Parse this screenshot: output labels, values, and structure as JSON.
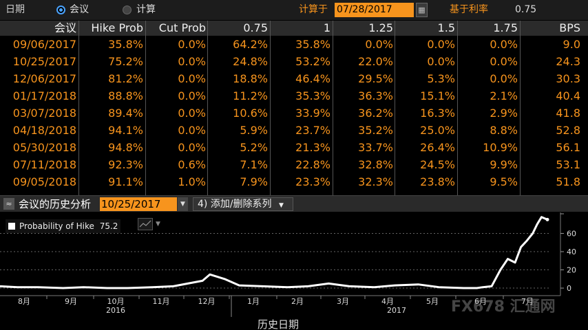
{
  "topbar": {
    "label_date": "日期",
    "radio_meeting": "会议",
    "radio_calc": "计算",
    "calc_on_label": "计算于",
    "calc_date": "07/28/2017",
    "base_rate_label": "基于利率",
    "base_rate_value": "0.75"
  },
  "table": {
    "headers": [
      "会议",
      "Hike Prob",
      "Cut Prob",
      "0.75",
      "1",
      "1.25",
      "1.5",
      "1.75",
      "BPS"
    ],
    "rows": [
      [
        "09/06/2017",
        "35.8%",
        "0.0%",
        "64.2%",
        "35.8%",
        "0.0%",
        "0.0%",
        "0.0%",
        "9.0"
      ],
      [
        "10/25/2017",
        "75.2%",
        "0.0%",
        "24.8%",
        "53.2%",
        "22.0%",
        "0.0%",
        "0.0%",
        "24.3"
      ],
      [
        "12/06/2017",
        "81.2%",
        "0.0%",
        "18.8%",
        "46.4%",
        "29.5%",
        "5.3%",
        "0.0%",
        "30.3"
      ],
      [
        "01/17/2018",
        "88.8%",
        "0.0%",
        "11.2%",
        "35.3%",
        "36.3%",
        "15.1%",
        "2.1%",
        "40.4"
      ],
      [
        "03/07/2018",
        "89.4%",
        "0.0%",
        "10.6%",
        "33.9%",
        "36.2%",
        "16.3%",
        "2.9%",
        "41.8"
      ],
      [
        "04/18/2018",
        "94.1%",
        "0.0%",
        "5.9%",
        "23.7%",
        "35.2%",
        "25.0%",
        "8.8%",
        "52.8"
      ],
      [
        "05/30/2018",
        "94.8%",
        "0.0%",
        "5.2%",
        "21.3%",
        "33.7%",
        "26.4%",
        "10.9%",
        "56.1"
      ],
      [
        "07/11/2018",
        "92.3%",
        "0.6%",
        "7.1%",
        "22.8%",
        "32.8%",
        "24.5%",
        "9.9%",
        "53.1"
      ],
      [
        "09/05/2018",
        "91.1%",
        "1.0%",
        "7.9%",
        "23.3%",
        "32.3%",
        "23.8%",
        "9.5%",
        "51.8"
      ]
    ]
  },
  "section": {
    "title": "会议的历史分析",
    "date": "10/25/2017",
    "add_label": "添加/删除系列",
    "add_icon": "4)"
  },
  "chart_data": {
    "type": "line",
    "series": [
      {
        "name": "Probability of Hike",
        "last_value": "75.2",
        "x": [
          "2016-07-20",
          "2016-08-01",
          "2016-08-15",
          "2016-09-01",
          "2016-09-15",
          "2016-10-01",
          "2016-10-15",
          "2016-11-01",
          "2016-11-15",
          "2016-11-25",
          "2016-12-05",
          "2016-12-10",
          "2016-12-20",
          "2016-12-30",
          "2017-01-15",
          "2017-02-01",
          "2017-02-15",
          "2017-03-01",
          "2017-03-15",
          "2017-04-01",
          "2017-04-15",
          "2017-05-01",
          "2017-05-15",
          "2017-06-01",
          "2017-06-10",
          "2017-06-14",
          "2017-06-20",
          "2017-06-26",
          "2017-07-01",
          "2017-07-06",
          "2017-07-10",
          "2017-07-14",
          "2017-07-18",
          "2017-07-21",
          "2017-07-24",
          "2017-07-28"
        ],
        "y": [
          2,
          1,
          1,
          0,
          1,
          0,
          0,
          1,
          2,
          5,
          8,
          15,
          10,
          3,
          2,
          1,
          2,
          5,
          2,
          1,
          3,
          4,
          1,
          0,
          0,
          1,
          2,
          20,
          32,
          28,
          45,
          52,
          60,
          70,
          78,
          75.2
        ]
      }
    ],
    "xlabel": "历史日期",
    "x_tick_labels": [
      "8月",
      "9月",
      "10月",
      "11月",
      "12月",
      "1月",
      "2月",
      "3月",
      "4月",
      "5月",
      "6月",
      "7月"
    ],
    "year_labels": [
      "2016",
      "2017"
    ],
    "y_ticks": [
      0,
      20,
      40,
      60
    ],
    "ylim": [
      -6,
      80
    ],
    "grid": true
  },
  "watermark": "FX678 汇通网",
  "colors": {
    "accent": "#f7941d",
    "header_bg": "#2b2b2b",
    "background": "#000000",
    "line": "#ffffff"
  }
}
